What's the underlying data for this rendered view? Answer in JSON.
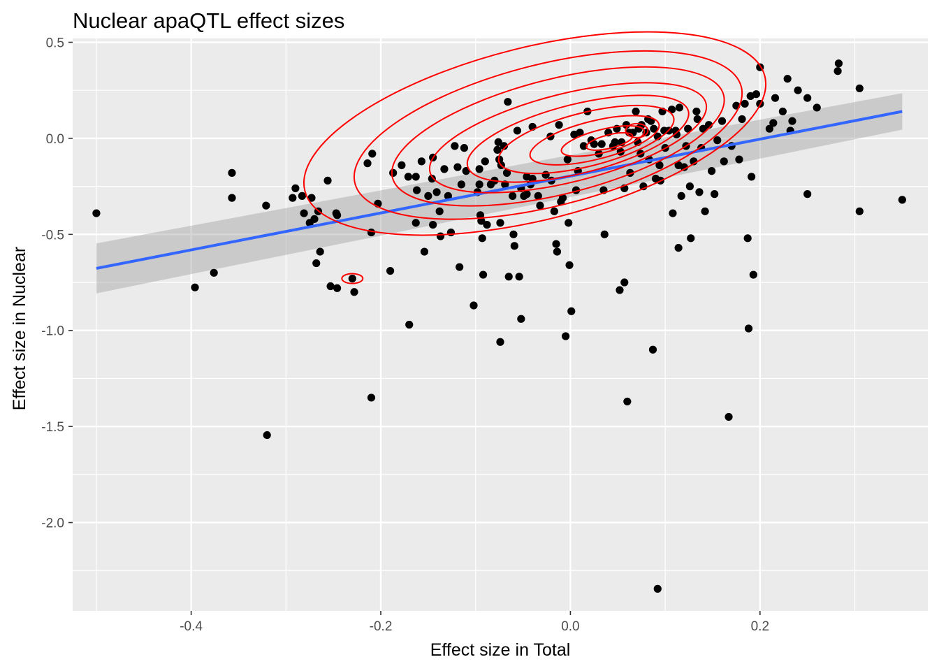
{
  "chart_data": {
    "type": "scatter",
    "title": "Nuclear apaQTL effect sizes",
    "xlabel": "Effect size in Total",
    "ylabel": "Effect size in Nuclear",
    "xlim": [
      -0.525,
      0.377
    ],
    "ylim": [
      -2.46,
      0.52
    ],
    "x_ticks": [
      -0.4,
      -0.2,
      0.0,
      0.2
    ],
    "x_tick_labels": [
      "-0.4",
      "-0.2",
      "0.0",
      "0.2"
    ],
    "y_ticks": [
      0.5,
      0.0,
      -0.5,
      -1.0,
      -1.5,
      -2.0
    ],
    "y_tick_labels": [
      "0.5",
      "0.0",
      "-0.5",
      "-1.0",
      "-1.5",
      "-2.0"
    ],
    "grid": true,
    "colors": {
      "panel": "#ebebeb",
      "grid": "#ffffff",
      "point": "#000000",
      "smooth_line": "#3366ff",
      "ribbon": "#999999",
      "contour": "#ff0000",
      "tick": "#333333"
    },
    "smooth": {
      "method": "lm",
      "x": [
        -0.5,
        0.35
      ],
      "y": [
        -0.677,
        0.14
      ],
      "ci_halfwidth": [
        0.13,
        0.095
      ]
    },
    "points": [
      [
        -0.5,
        -0.39
      ],
      [
        -0.396,
        -0.776
      ],
      [
        -0.376,
        -0.7
      ],
      [
        -0.357,
        -0.18
      ],
      [
        -0.357,
        -0.31
      ],
      [
        -0.32,
        -1.545
      ],
      [
        -0.321,
        -0.35
      ],
      [
        -0.293,
        -0.31
      ],
      [
        -0.29,
        -0.26
      ],
      [
        -0.283,
        -0.3
      ],
      [
        -0.281,
        -0.39
      ],
      [
        -0.275,
        -0.44
      ],
      [
        -0.273,
        -0.31
      ],
      [
        -0.27,
        -0.42
      ],
      [
        -0.268,
        -0.65
      ],
      [
        -0.266,
        -0.38
      ],
      [
        -0.264,
        -0.59
      ],
      [
        -0.256,
        -0.22
      ],
      [
        -0.253,
        -0.77
      ],
      [
        -0.247,
        -0.39
      ],
      [
        -0.246,
        -0.4
      ],
      [
        -0.246,
        -0.78
      ],
      [
        -0.228,
        -0.8
      ],
      [
        -0.214,
        -0.13
      ],
      [
        -0.209,
        -0.08
      ],
      [
        -0.21,
        -0.49
      ],
      [
        -0.21,
        -1.35
      ],
      [
        -0.203,
        -0.34
      ],
      [
        -0.19,
        -0.69
      ],
      [
        -0.187,
        -0.18
      ],
      [
        -0.178,
        -0.14
      ],
      [
        -0.17,
        -0.97
      ],
      [
        -0.171,
        -0.2
      ],
      [
        -0.163,
        -0.2
      ],
      [
        -0.163,
        -0.44
      ],
      [
        -0.162,
        -0.27
      ],
      [
        -0.157,
        -0.12
      ],
      [
        -0.154,
        -0.59
      ],
      [
        -0.15,
        -0.3
      ],
      [
        -0.146,
        -0.21
      ],
      [
        -0.145,
        -0.1
      ],
      [
        -0.145,
        -0.45
      ],
      [
        -0.141,
        -0.28
      ],
      [
        -0.138,
        -0.38
      ],
      [
        -0.137,
        -0.51
      ],
      [
        -0.133,
        -0.16
      ],
      [
        -0.129,
        -0.3
      ],
      [
        -0.126,
        -0.49
      ],
      [
        -0.122,
        -0.04
      ],
      [
        -0.119,
        -0.15
      ],
      [
        -0.117,
        -0.67
      ],
      [
        -0.115,
        -0.24
      ],
      [
        -0.112,
        -0.05
      ],
      [
        -0.11,
        -0.17
      ],
      [
        -0.102,
        -0.87
      ],
      [
        -0.098,
        -0.28
      ],
      [
        -0.096,
        -0.16
      ],
      [
        -0.096,
        -0.24
      ],
      [
        -0.095,
        -0.4
      ],
      [
        -0.094,
        -0.43
      ],
      [
        -0.093,
        -0.52
      ],
      [
        -0.092,
        -0.71
      ],
      [
        -0.09,
        -0.12
      ],
      [
        -0.088,
        -0.45
      ],
      [
        -0.084,
        -0.24
      ],
      [
        -0.08,
        -0.22
      ],
      [
        -0.077,
        -0.06
      ],
      [
        -0.076,
        -0.02
      ],
      [
        -0.075,
        -0.11
      ],
      [
        -0.074,
        -1.06
      ],
      [
        -0.074,
        -0.44
      ],
      [
        -0.073,
        -0.14
      ],
      [
        -0.07,
        -0.04
      ],
      [
        -0.069,
        -0.24
      ],
      [
        -0.067,
        -0.18
      ],
      [
        -0.066,
        0.19
      ],
      [
        -0.065,
        -0.72
      ],
      [
        -0.061,
        -0.3
      ],
      [
        -0.06,
        -0.5
      ],
      [
        -0.059,
        -0.56
      ],
      [
        -0.056,
        0.04
      ],
      [
        -0.054,
        -0.72
      ],
      [
        -0.052,
        -0.94
      ],
      [
        -0.052,
        -0.26
      ],
      [
        -0.049,
        -0.3
      ],
      [
        -0.046,
        -0.2
      ],
      [
        -0.046,
        -0.29
      ],
      [
        -0.042,
        -0.24
      ],
      [
        -0.04,
        -0.21
      ],
      [
        -0.04,
        0.06
      ],
      [
        -0.034,
        -0.3
      ],
      [
        -0.032,
        -0.35
      ],
      [
        -0.026,
        -0.19
      ],
      [
        -0.021,
        0.01
      ],
      [
        -0.02,
        -0.22
      ],
      [
        -0.017,
        -0.38
      ],
      [
        -0.015,
        -0.55
      ],
      [
        -0.014,
        -0.59
      ],
      [
        -0.012,
        0.07
      ],
      [
        -0.01,
        -0.33
      ],
      [
        -0.008,
        -0.31
      ],
      [
        -0.005,
        -1.03
      ],
      [
        -0.003,
        -0.11
      ],
      [
        -0.002,
        -0.44
      ],
      [
        -0.001,
        -0.66
      ],
      [
        0.001,
        -0.9
      ],
      [
        0.004,
        0.02
      ],
      [
        0.006,
        -0.27
      ],
      [
        0.008,
        -0.17
      ],
      [
        0.01,
        0.03
      ],
      [
        0.014,
        -0.04
      ],
      [
        0.018,
        0.14
      ],
      [
        0.022,
        -0.01
      ],
      [
        0.025,
        -0.03
      ],
      [
        0.03,
        -0.08
      ],
      [
        0.033,
        -0.03
      ],
      [
        0.035,
        -0.27
      ],
      [
        0.036,
        -0.5
      ],
      [
        0.04,
        0.03
      ],
      [
        0.045,
        -0.04
      ],
      [
        0.047,
        -0.02
      ],
      [
        0.049,
        0.05
      ],
      [
        0.052,
        -0.79
      ],
      [
        0.053,
        -0.07
      ],
      [
        0.054,
        -0.02
      ],
      [
        0.057,
        -0.26
      ],
      [
        0.057,
        -0.75
      ],
      [
        0.059,
        0.07
      ],
      [
        0.06,
        -1.37
      ],
      [
        0.062,
        0.03
      ],
      [
        0.063,
        -0.18
      ],
      [
        0.066,
        0.03
      ],
      [
        0.069,
        0.14
      ],
      [
        0.071,
        -0.02
      ],
      [
        0.072,
        0.05
      ],
      [
        0.074,
        -0.08
      ],
      [
        0.075,
        0.07
      ],
      [
        0.077,
        -0.25
      ],
      [
        0.08,
        0.03
      ],
      [
        0.082,
        0.1
      ],
      [
        0.083,
        -0.11
      ],
      [
        0.085,
        0.09
      ],
      [
        0.087,
        -1.1
      ],
      [
        0.088,
        0.05
      ],
      [
        0.09,
        -0.21
      ],
      [
        0.092,
        0.01
      ],
      [
        0.092,
        -2.345
      ],
      [
        0.094,
        -0.14
      ],
      [
        0.095,
        -0.22
      ],
      [
        0.097,
        0.14
      ],
      [
        0.099,
        0.04
      ],
      [
        0.1,
        -0.05
      ],
      [
        0.104,
        0.04
      ],
      [
        0.107,
        0.15
      ],
      [
        0.108,
        -0.39
      ],
      [
        0.111,
        0.04
      ],
      [
        0.112,
        0.02
      ],
      [
        0.114,
        -0.57
      ],
      [
        0.114,
        -0.14
      ],
      [
        0.115,
        0.16
      ],
      [
        0.117,
        -0.3
      ],
      [
        0.12,
        -0.15
      ],
      [
        0.122,
        -0.04
      ],
      [
        0.124,
        0.05
      ],
      [
        0.126,
        -0.25
      ],
      [
        0.127,
        -0.52
      ],
      [
        0.13,
        -0.12
      ],
      [
        0.133,
        0.14
      ],
      [
        0.134,
        0.1
      ],
      [
        0.136,
        -0.28
      ],
      [
        0.138,
        -0.05
      ],
      [
        0.14,
        0.05
      ],
      [
        0.142,
        -0.38
      ],
      [
        0.146,
        0.07
      ],
      [
        0.149,
        -0.17
      ],
      [
        0.152,
        -0.29
      ],
      [
        0.155,
        -0.01
      ],
      [
        0.16,
        0.09
      ],
      [
        0.162,
        -0.12
      ],
      [
        0.167,
        -1.45
      ],
      [
        0.17,
        -0.04
      ],
      [
        0.175,
        0.17
      ],
      [
        0.178,
        -0.11
      ],
      [
        0.181,
        0.1
      ],
      [
        0.184,
        0.18
      ],
      [
        0.187,
        -0.52
      ],
      [
        0.188,
        -0.99
      ],
      [
        0.19,
        0.22
      ],
      [
        0.191,
        -0.2
      ],
      [
        0.193,
        -0.71
      ],
      [
        0.196,
        0.23
      ],
      [
        0.2,
        0.37
      ],
      [
        0.2,
        0.18
      ],
      [
        0.21,
        0.05
      ],
      [
        0.214,
        0.08
      ],
      [
        0.216,
        0.21
      ],
      [
        0.224,
        0.14
      ],
      [
        0.229,
        0.31
      ],
      [
        0.232,
        0.04
      ],
      [
        0.234,
        0.09
      ],
      [
        0.24,
        0.25
      ],
      [
        0.25,
        0.21
      ],
      [
        0.25,
        -0.29
      ],
      [
        0.26,
        0.16
      ],
      [
        0.282,
        0.35
      ],
      [
        0.283,
        0.39
      ],
      [
        0.305,
        0.26
      ],
      [
        0.305,
        -0.38
      ],
      [
        0.35,
        -0.32
      ],
      [
        -0.23,
        -0.73
      ]
    ],
    "contour_centers": [
      [
        0.05,
        -0.02
      ],
      [
        0.07,
        0.04
      ]
    ],
    "contour_radii_x": [
      0.025,
      0.045,
      0.07,
      0.095,
      0.12,
      0.15,
      0.18,
      0.21,
      0.25
    ],
    "contour_radii_y": [
      0.035,
      0.06,
      0.1,
      0.14,
      0.18,
      0.23,
      0.3,
      0.37,
      0.45
    ]
  }
}
